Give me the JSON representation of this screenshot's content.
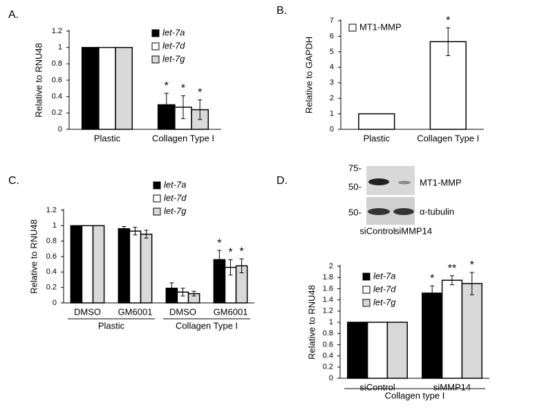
{
  "chart_data": [
    {
      "type": "bar",
      "title": "A.",
      "ylabel": "Relative to RNU48",
      "categories": [
        "Plastic",
        "Collagen Type I"
      ],
      "series": [
        {
          "name": "let-7a",
          "color": "#000000",
          "values": [
            1,
            0.3
          ],
          "errors": [
            0,
            0.14
          ],
          "annotations": [
            null,
            "*"
          ]
        },
        {
          "name": "let-7d",
          "color": "#ffffff",
          "values": [
            1,
            0.27
          ],
          "errors": [
            0,
            0.14
          ],
          "annotations": [
            null,
            "*"
          ]
        },
        {
          "name": "let-7g",
          "color": "#d9d9d9",
          "values": [
            1,
            0.24
          ],
          "errors": [
            0,
            0.12
          ],
          "annotations": [
            null,
            "*"
          ]
        }
      ],
      "ylim": [
        0,
        1.2
      ],
      "yticks": [
        0,
        0.2,
        0.4,
        0.6,
        0.8,
        1,
        1.2
      ]
    },
    {
      "type": "bar",
      "title": "B.",
      "ylabel": "Relative to GAPDH",
      "categories": [
        "Plastic",
        "Collagen Type I"
      ],
      "series": [
        {
          "name": "MT1-MMP",
          "color": "#ffffff",
          "values": [
            1,
            5.65
          ],
          "errors": [
            0,
            0.9
          ],
          "annotations": [
            null,
            "*"
          ]
        }
      ],
      "ylim": [
        0,
        7
      ],
      "yticks": [
        0,
        1,
        2,
        3,
        4,
        5,
        6,
        7
      ]
    },
    {
      "type": "bar",
      "title": "C.",
      "ylabel": "Relative to RNU48",
      "categories": [
        "DMSO",
        "GM6001",
        "DMSO",
        "GM6001"
      ],
      "group_labels": [
        "Plastic",
        "Collagen Type I"
      ],
      "series": [
        {
          "name": "let-7a",
          "color": "#000000",
          "values": [
            1,
            0.96,
            0.19,
            0.56
          ],
          "errors": [
            0,
            0.03,
            0.07,
            0.12
          ],
          "annotations": [
            null,
            null,
            null,
            "*"
          ]
        },
        {
          "name": "let-7d",
          "color": "#ffffff",
          "values": [
            1,
            0.93,
            0.14,
            0.46
          ],
          "errors": [
            0,
            0.05,
            0.05,
            0.1
          ],
          "annotations": [
            null,
            null,
            null,
            "*"
          ]
        },
        {
          "name": "let-7g",
          "color": "#d9d9d9",
          "values": [
            1,
            0.89,
            0.12,
            0.48
          ],
          "errors": [
            0,
            0.05,
            0.03,
            0.09
          ],
          "annotations": [
            null,
            null,
            null,
            "*"
          ]
        }
      ],
      "ylim": [
        0,
        1.2
      ],
      "yticks": [
        0,
        0.2,
        0.4,
        0.6,
        0.8,
        1,
        1.2
      ]
    },
    {
      "type": "bar",
      "title": "D.",
      "ylabel": "Relative to RNU48",
      "categories": [
        "siControl",
        "siMMP14"
      ],
      "group_labels": [
        "Collagen type I"
      ],
      "series": [
        {
          "name": "let-7a",
          "color": "#000000",
          "values": [
            1,
            1.52
          ],
          "errors": [
            0,
            0.13
          ],
          "annotations": [
            null,
            "*"
          ]
        },
        {
          "name": "let-7d",
          "color": "#ffffff",
          "values": [
            1,
            1.75
          ],
          "errors": [
            0,
            0.08
          ],
          "annotations": [
            null,
            "**"
          ]
        },
        {
          "name": "let-7g",
          "color": "#d9d9d9",
          "values": [
            1,
            1.69
          ],
          "errors": [
            0,
            0.2
          ],
          "annotations": [
            null,
            "*"
          ]
        }
      ],
      "ylim": [
        0,
        2
      ],
      "yticks": [
        0,
        0.2,
        0.4,
        0.6,
        0.8,
        1,
        1.2,
        1.4,
        1.6,
        1.8,
        2
      ]
    }
  ],
  "blot": {
    "markers": [
      "75-",
      "50-",
      "50-"
    ],
    "bands": [
      "MT1-MMP",
      "α-tubulin"
    ],
    "lanes": [
      "siControl",
      "siMMP14"
    ]
  }
}
